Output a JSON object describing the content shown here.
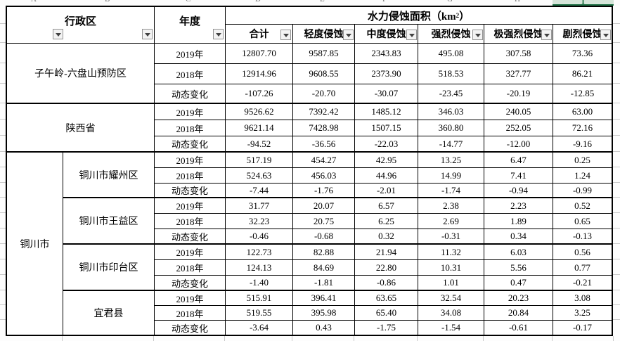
{
  "sheet": {
    "col_letters": [
      "A",
      "B",
      "C",
      "D",
      "E",
      "F",
      "G",
      "H"
    ],
    "selected_col_letter": "I",
    "colors": {
      "selected_column_green": "#1f7145",
      "grid_border": "#000000",
      "filter_button_face": "#f3f3f3"
    }
  },
  "header": {
    "admin_region": "行政区",
    "year": "年度",
    "erosion_title_pre": "水力侵蚀面积（km",
    "erosion_title_sup": "2",
    "erosion_title_post": "）",
    "columns": [
      "合计",
      "轻度侵蚀",
      "中度侵蚀",
      "强烈侵蚀",
      "极强烈侵蚀",
      "剧烈侵蚀"
    ]
  },
  "group": {
    "label": "铜川市"
  },
  "sections": [
    {
      "region": "子午岭-六盘山预防区",
      "rows": [
        {
          "year": "2019年",
          "values": [
            "12807.70",
            "9587.85",
            "2343.83",
            "495.08",
            "307.58",
            "73.36"
          ]
        },
        {
          "year": "2018年",
          "values": [
            "12914.96",
            "9608.55",
            "2373.90",
            "518.53",
            "327.77",
            "86.21"
          ]
        },
        {
          "year": "动态变化",
          "values": [
            "-107.26",
            "-20.70",
            "-30.07",
            "-23.45",
            "-20.19",
            "-12.85"
          ]
        }
      ]
    },
    {
      "region": "陕西省",
      "rows": [
        {
          "year": "2019年",
          "values": [
            "9526.62",
            "7392.42",
            "1485.12",
            "346.03",
            "240.05",
            "63.00"
          ]
        },
        {
          "year": "2018年",
          "values": [
            "9621.14",
            "7428.98",
            "1507.15",
            "360.80",
            "252.05",
            "72.16"
          ]
        },
        {
          "year": "动态变化",
          "values": [
            "-94.52",
            "-36.56",
            "-22.03",
            "-14.77",
            "-12.00",
            "-9.16"
          ]
        }
      ]
    },
    {
      "region": "铜川市耀州区",
      "rows": [
        {
          "year": "2019年",
          "values": [
            "517.19",
            "454.27",
            "42.95",
            "13.25",
            "6.47",
            "0.25"
          ]
        },
        {
          "year": "2018年",
          "values": [
            "524.63",
            "456.03",
            "44.96",
            "14.99",
            "7.41",
            "1.24"
          ]
        },
        {
          "year": "动态变化",
          "values": [
            "-7.44",
            "-1.76",
            "-2.01",
            "-1.74",
            "-0.94",
            "-0.99"
          ]
        }
      ]
    },
    {
      "region": "铜川市王益区",
      "rows": [
        {
          "year": "2019年",
          "values": [
            "31.77",
            "20.07",
            "6.57",
            "2.38",
            "2.23",
            "0.52"
          ]
        },
        {
          "year": "2018年",
          "values": [
            "32.23",
            "20.75",
            "6.25",
            "2.69",
            "1.89",
            "0.65"
          ]
        },
        {
          "year": "动态变化",
          "values": [
            "-0.46",
            "-0.68",
            "0.32",
            "-0.31",
            "0.34",
            "-0.13"
          ]
        }
      ]
    },
    {
      "region": "铜川市印台区",
      "rows": [
        {
          "year": "2019年",
          "values": [
            "122.73",
            "82.88",
            "21.94",
            "11.32",
            "6.03",
            "0.56"
          ]
        },
        {
          "year": "2018年",
          "values": [
            "124.13",
            "84.69",
            "22.80",
            "10.31",
            "5.56",
            "0.77"
          ]
        },
        {
          "year": "动态变化",
          "values": [
            "-1.40",
            "-1.81",
            "-0.86",
            "1.01",
            "0.47",
            "-0.21"
          ]
        }
      ]
    },
    {
      "region": "宜君县",
      "rows": [
        {
          "year": "2019年",
          "values": [
            "515.91",
            "396.41",
            "63.65",
            "32.54",
            "20.23",
            "3.08"
          ]
        },
        {
          "year": "2018年",
          "values": [
            "519.55",
            "395.98",
            "65.40",
            "34.08",
            "20.84",
            "3.25"
          ]
        },
        {
          "year": "动态变化",
          "values": [
            "-3.64",
            "0.43",
            "-1.75",
            "-1.54",
            "-0.61",
            "-0.17"
          ]
        }
      ]
    }
  ]
}
